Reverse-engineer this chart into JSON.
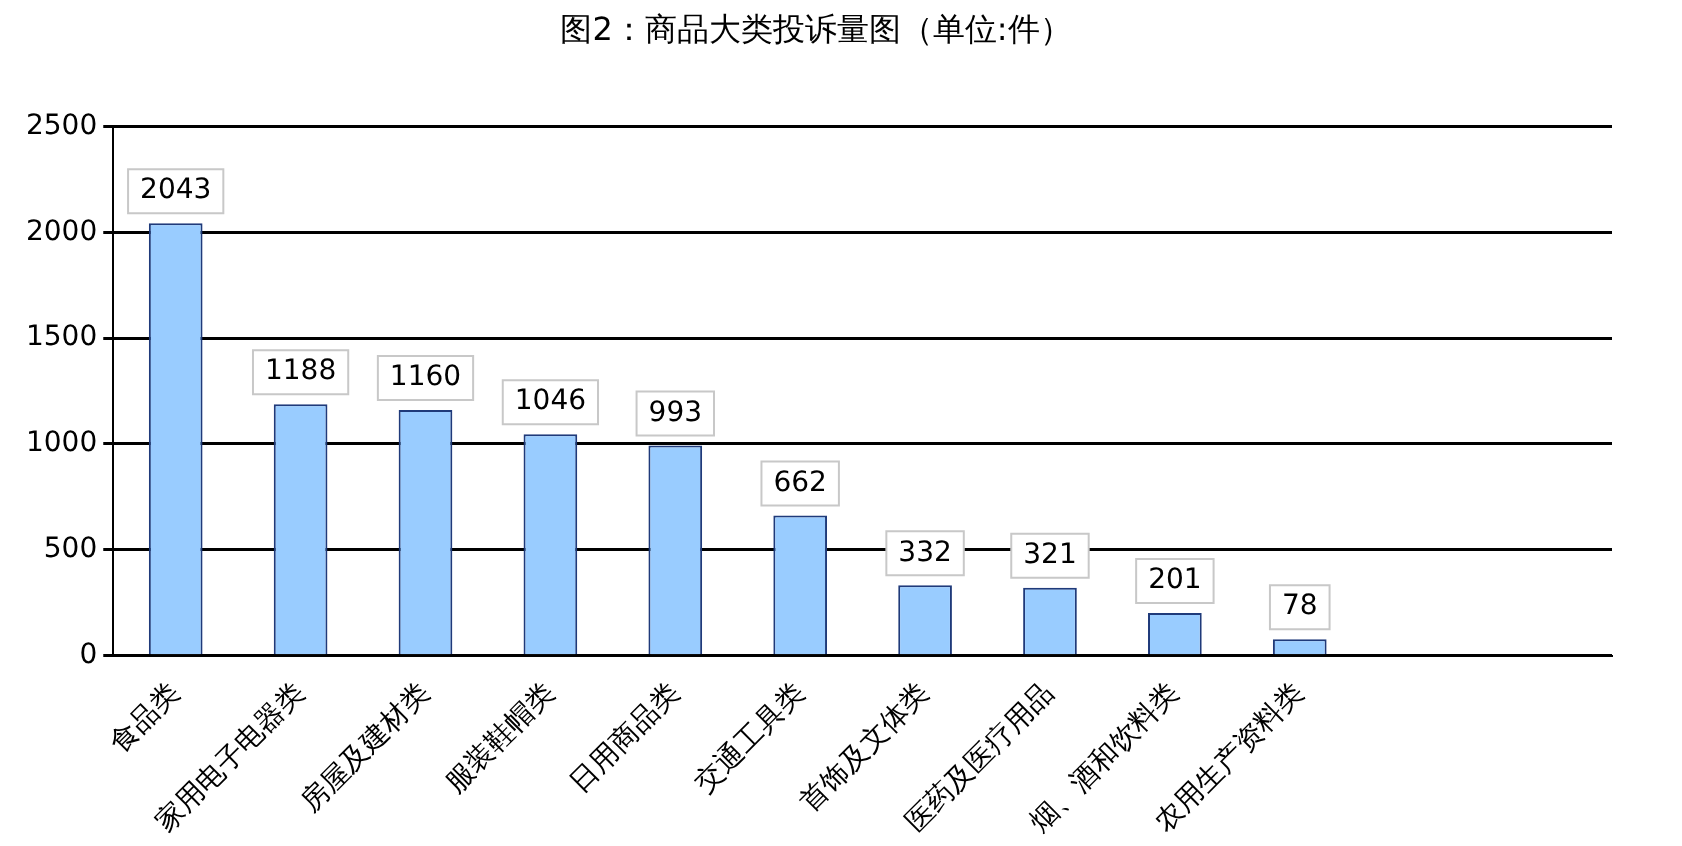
{
  "chart_data": {
    "type": "bar",
    "title": "图2：商品大类投诉量图（单位:件）",
    "categories": [
      "食品类",
      "家用电子电器类",
      "房屋及建材类",
      "服装鞋帽类",
      "日用商品类",
      "交通工具类",
      "首饰及文体类",
      "医药及医疗用品",
      "烟、酒和饮料类",
      "农用生产资料类",
      null,
      null
    ],
    "values": [
      2043,
      1188,
      1160,
      1046,
      993,
      662,
      332,
      321,
      201,
      78,
      null,
      null
    ],
    "color": "#99ccff",
    "ylim": [
      0,
      2500
    ],
    "yticks": [
      0,
      500,
      1000,
      1500,
      2000,
      2500
    ],
    "grid": "y",
    "data_labels": true
  }
}
